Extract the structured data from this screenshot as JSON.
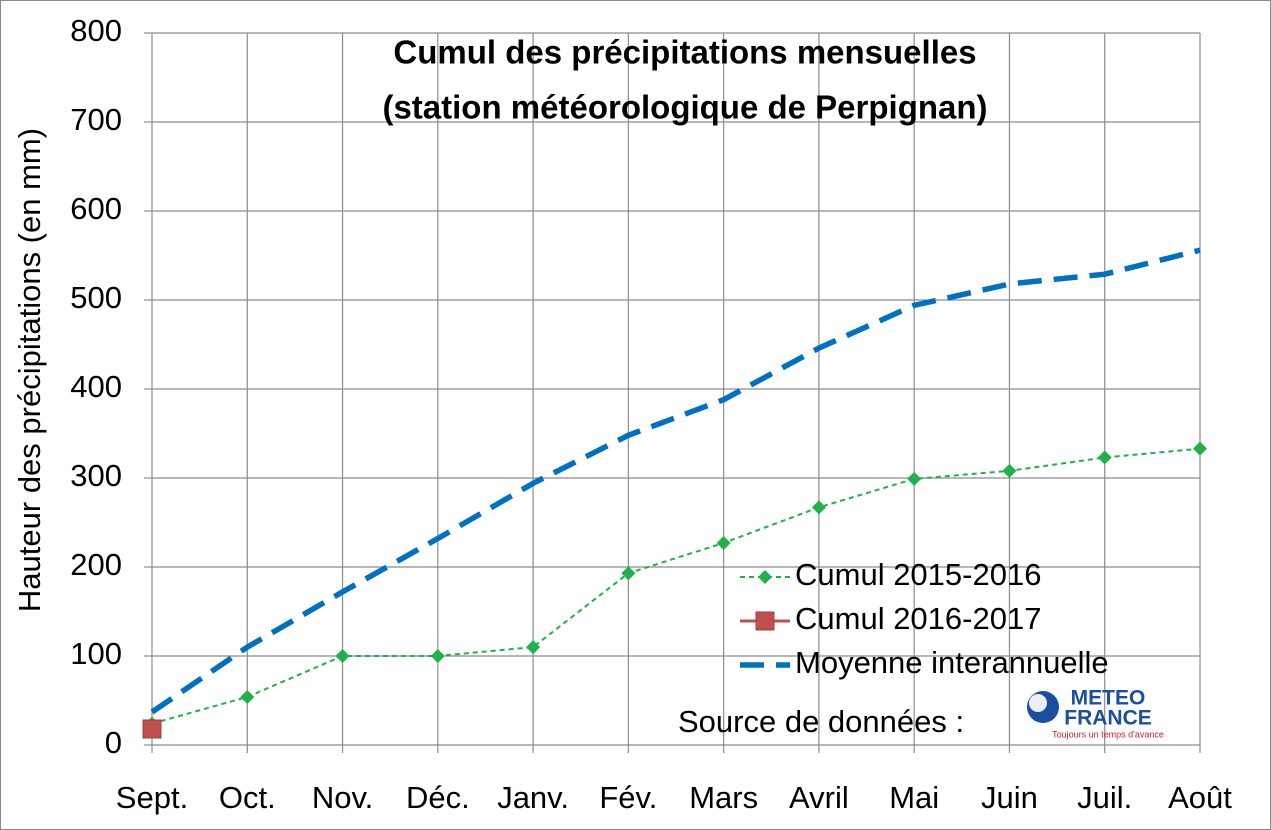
{
  "chart_data": {
    "type": "line",
    "title": [
      "Cumul des précipitations mensuelles",
      "(station météorologique de Perpignan)"
    ],
    "y_label": "Hauteur des précipitations (en mm)",
    "categories": [
      "Sept.",
      "Oct.",
      "Nov.",
      "Déc.",
      "Janv.",
      "Fév.",
      "Mars",
      "Avril",
      "Mai",
      "Juin",
      "Juil.",
      "Août"
    ],
    "series": [
      {
        "name": "Cumul 2015-2016",
        "color": "#1fb14a",
        "line_style": "dotted",
        "marker": "diamond",
        "values": [
          24,
          54,
          100,
          100,
          110,
          193,
          227,
          267,
          299,
          308,
          323,
          333
        ]
      },
      {
        "name": "Cumul 2016-2017",
        "color": "#c0504d",
        "line_style": "solid",
        "marker": "square",
        "values": [
          18,
          null,
          null,
          null,
          null,
          null,
          null,
          null,
          null,
          null,
          null,
          null
        ]
      },
      {
        "name": "Moyenne interannuelle",
        "color": "#0070c0",
        "line_style": "dashed",
        "marker": "none",
        "values": [
          37,
          110,
          172,
          232,
          294,
          348,
          388,
          446,
          494,
          518,
          529,
          556
        ]
      }
    ],
    "ylim": [
      0,
      800
    ],
    "yticks": [
      0,
      100,
      200,
      300,
      400,
      500,
      600,
      700,
      800
    ],
    "grid": true,
    "legend": "lower right",
    "source": "Source de données :",
    "logo": {
      "line1": "METEO",
      "line2": "FRANCE",
      "tagline": "Toujours un temps d'avance"
    }
  }
}
